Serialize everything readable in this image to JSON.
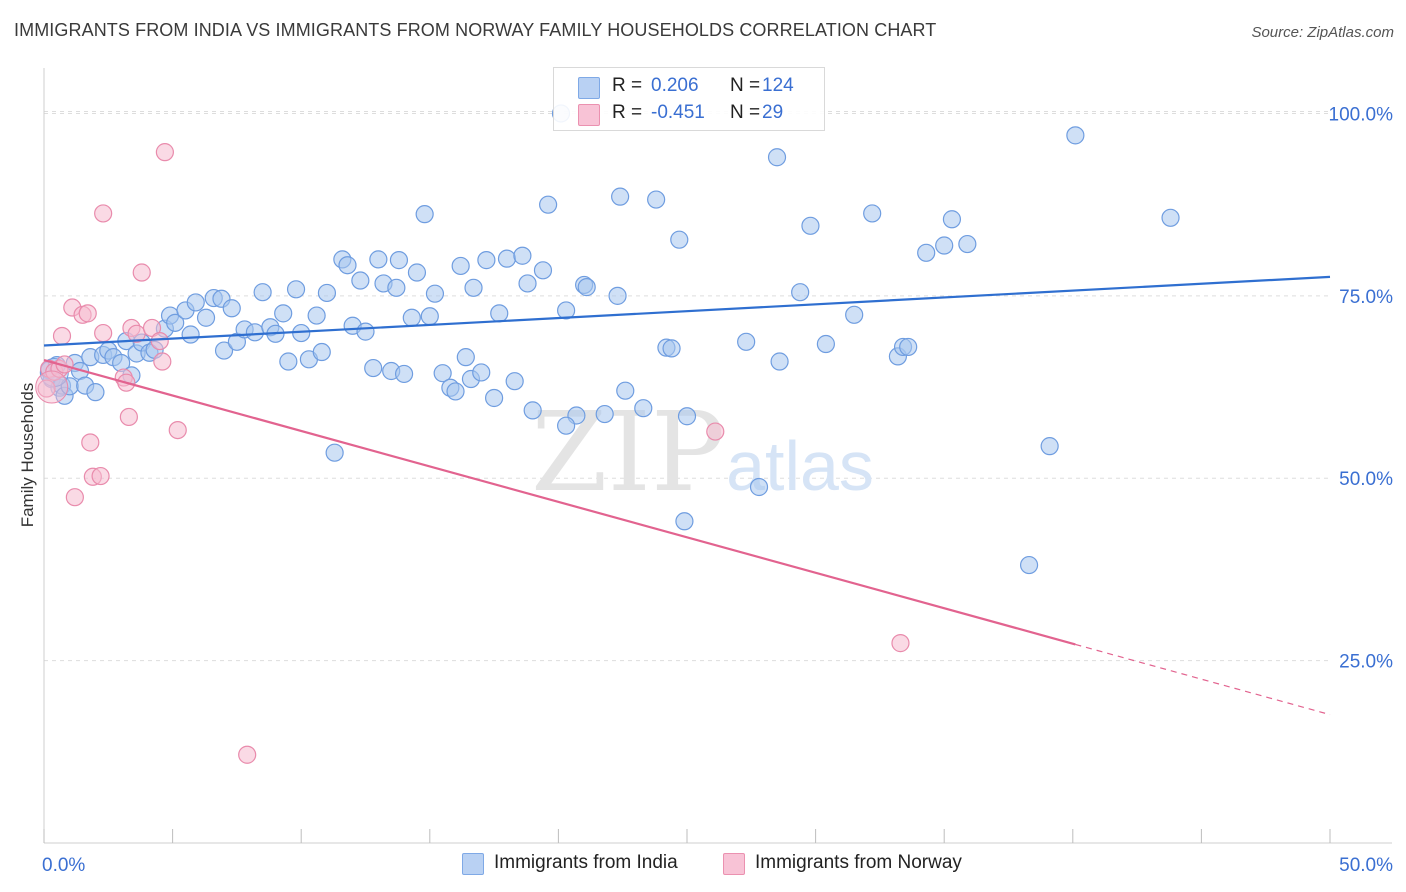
{
  "header": {
    "title": "IMMIGRANTS FROM INDIA VS IMMIGRANTS FROM NORWAY FAMILY HOUSEHOLDS CORRELATION CHART",
    "source": "Source: ZipAtlas.com"
  },
  "watermark": {
    "main": "ZIP",
    "sub": "atlas"
  },
  "legend": {
    "r_label": "R =",
    "n_label": "N =",
    "rows": [
      {
        "r": "0.206",
        "n": "124",
        "color": "#7fa9e6",
        "fill": "#b9d1f3"
      },
      {
        "r": "-0.451",
        "n": "29",
        "color": "#eb91b0",
        "fill": "#f8c3d6"
      }
    ]
  },
  "colors": {
    "india_fill": "#a8c6ef",
    "india_stroke": "#6f9de0",
    "india_line": "#2f6fd0",
    "norway_fill": "#f6bcd0",
    "norway_stroke": "#e98bac",
    "norway_line": "#e2638f",
    "tick_text": "#3a6fd2",
    "grid": "#dddddd"
  },
  "chart_data": {
    "type": "scatter",
    "title": "IMMIGRANTS FROM INDIA VS IMMIGRANTS FROM NORWAY FAMILY HOUSEHOLDS CORRELATION CHART",
    "xlabel": "",
    "ylabel": "Family Households",
    "xlim": [
      0,
      50
    ],
    "ylim": [
      0,
      105
    ],
    "x_tick_labels": [
      "0.0%",
      "50.0%"
    ],
    "y_ticks": [
      25,
      50,
      75,
      100
    ],
    "y_tick_labels": [
      "25.0%",
      "50.0%",
      "75.0%",
      "100.0%"
    ],
    "grid": true,
    "legend_position": "top-center",
    "series": [
      {
        "name": "Immigrants from India",
        "trend": {
          "x": [
            0,
            50
          ],
          "y": [
            68.2,
            77.6
          ],
          "dashed_from": null
        },
        "points": [
          [
            0.2,
            64.8
          ],
          [
            0.3,
            63.6
          ],
          [
            0.5,
            65.5
          ],
          [
            0.6,
            62.4
          ],
          [
            0.7,
            62.7
          ],
          [
            0.8,
            61.3
          ],
          [
            1.0,
            62.6
          ],
          [
            1.2,
            65.8
          ],
          [
            1.4,
            64.7
          ],
          [
            1.6,
            62.7
          ],
          [
            1.8,
            66.6
          ],
          [
            2.0,
            61.8
          ],
          [
            2.3,
            66.9
          ],
          [
            2.5,
            67.5
          ],
          [
            2.7,
            66.6
          ],
          [
            3.0,
            65.8
          ],
          [
            3.2,
            68.8
          ],
          [
            3.4,
            64.1
          ],
          [
            3.6,
            67.1
          ],
          [
            3.8,
            68.6
          ],
          [
            4.1,
            67.2
          ],
          [
            4.3,
            67.6
          ],
          [
            4.7,
            70.5
          ],
          [
            4.9,
            72.3
          ],
          [
            5.1,
            71.3
          ],
          [
            5.5,
            73.0
          ],
          [
            5.7,
            69.7
          ],
          [
            5.9,
            74.1
          ],
          [
            6.3,
            72.0
          ],
          [
            6.6,
            74.7
          ],
          [
            6.9,
            74.6
          ],
          [
            7.0,
            67.5
          ],
          [
            7.3,
            73.3
          ],
          [
            7.5,
            68.7
          ],
          [
            7.8,
            70.4
          ],
          [
            8.2,
            70.0
          ],
          [
            8.5,
            75.5
          ],
          [
            8.8,
            70.7
          ],
          [
            9.0,
            69.8
          ],
          [
            9.3,
            72.6
          ],
          [
            9.5,
            66.0
          ],
          [
            9.8,
            75.9
          ],
          [
            10.0,
            69.9
          ],
          [
            10.3,
            66.3
          ],
          [
            10.6,
            72.3
          ],
          [
            10.8,
            67.3
          ],
          [
            11.0,
            75.4
          ],
          [
            11.3,
            53.5
          ],
          [
            11.6,
            80.0
          ],
          [
            11.8,
            79.2
          ],
          [
            12.0,
            70.9
          ],
          [
            12.3,
            77.1
          ],
          [
            12.5,
            70.1
          ],
          [
            12.8,
            65.1
          ],
          [
            13.0,
            80.0
          ],
          [
            13.2,
            76.7
          ],
          [
            13.5,
            64.7
          ],
          [
            13.7,
            76.1
          ],
          [
            13.8,
            79.9
          ],
          [
            14.0,
            64.3
          ],
          [
            14.3,
            72.0
          ],
          [
            14.5,
            78.2
          ],
          [
            14.8,
            86.2
          ],
          [
            15.0,
            72.2
          ],
          [
            15.2,
            75.3
          ],
          [
            15.5,
            64.4
          ],
          [
            15.8,
            62.4
          ],
          [
            16.0,
            61.9
          ],
          [
            16.2,
            79.1
          ],
          [
            16.4,
            66.6
          ],
          [
            16.6,
            63.6
          ],
          [
            16.7,
            76.1
          ],
          [
            17.0,
            64.5
          ],
          [
            17.2,
            79.9
          ],
          [
            17.5,
            61.0
          ],
          [
            17.7,
            72.6
          ],
          [
            18.0,
            80.1
          ],
          [
            18.3,
            63.3
          ],
          [
            18.6,
            80.5
          ],
          [
            18.8,
            76.7
          ],
          [
            19.0,
            59.3
          ],
          [
            19.4,
            78.5
          ],
          [
            19.6,
            87.5
          ],
          [
            20.3,
            73.0
          ],
          [
            20.7,
            58.6
          ],
          [
            21.0,
            76.5
          ],
          [
            21.1,
            76.2
          ],
          [
            21.8,
            58.8
          ],
          [
            22.3,
            75.0
          ],
          [
            22.4,
            88.6
          ],
          [
            22.6,
            62.0
          ],
          [
            23.3,
            59.6
          ],
          [
            23.8,
            88.2
          ],
          [
            24.2,
            67.9
          ],
          [
            24.4,
            67.8
          ],
          [
            24.7,
            82.7
          ],
          [
            24.9,
            44.1
          ],
          [
            25.0,
            58.5
          ],
          [
            27.3,
            68.7
          ],
          [
            27.8,
            48.8
          ],
          [
            28.6,
            66.0
          ],
          [
            29.4,
            75.5
          ],
          [
            29.8,
            84.6
          ],
          [
            30.4,
            68.4
          ],
          [
            31.5,
            72.4
          ],
          [
            32.2,
            86.3
          ],
          [
            33.2,
            66.7
          ],
          [
            33.4,
            68.0
          ],
          [
            33.6,
            68.0
          ],
          [
            34.3,
            80.9
          ],
          [
            35.0,
            81.9
          ],
          [
            35.3,
            85.5
          ],
          [
            35.9,
            82.1
          ],
          [
            39.1,
            54.4
          ],
          [
            38.3,
            38.1
          ],
          [
            40.1,
            97.0
          ],
          [
            43.8,
            85.7
          ],
          [
            20.1,
            100.0
          ],
          [
            28.5,
            94.0
          ],
          [
            20.3,
            57.2
          ]
        ]
      },
      {
        "name": "Immigrants from Norway",
        "trend": {
          "x": [
            0,
            50
          ],
          "y": [
            66.2,
            17.6
          ],
          "dashed_from": 40.1
        },
        "points": [
          [
            0.1,
            62.3
          ],
          [
            0.2,
            65.0
          ],
          [
            0.4,
            64.6
          ],
          [
            0.6,
            65.0
          ],
          [
            0.7,
            69.5
          ],
          [
            0.8,
            65.6
          ],
          [
            1.1,
            73.4
          ],
          [
            1.2,
            47.4
          ],
          [
            1.5,
            72.4
          ],
          [
            1.7,
            72.6
          ],
          [
            1.8,
            54.9
          ],
          [
            1.9,
            50.2
          ],
          [
            2.2,
            50.3
          ],
          [
            2.3,
            69.9
          ],
          [
            2.3,
            86.3
          ],
          [
            3.1,
            63.8
          ],
          [
            3.2,
            63.1
          ],
          [
            3.3,
            58.4
          ],
          [
            3.4,
            70.6
          ],
          [
            3.6,
            69.8
          ],
          [
            3.8,
            78.2
          ],
          [
            4.2,
            70.6
          ],
          [
            4.5,
            68.8
          ],
          [
            4.6,
            66.0
          ],
          [
            4.7,
            94.7
          ],
          [
            5.2,
            56.6
          ],
          [
            7.9,
            12.1
          ],
          [
            26.1,
            56.4
          ],
          [
            33.3,
            27.4
          ]
        ]
      }
    ]
  }
}
